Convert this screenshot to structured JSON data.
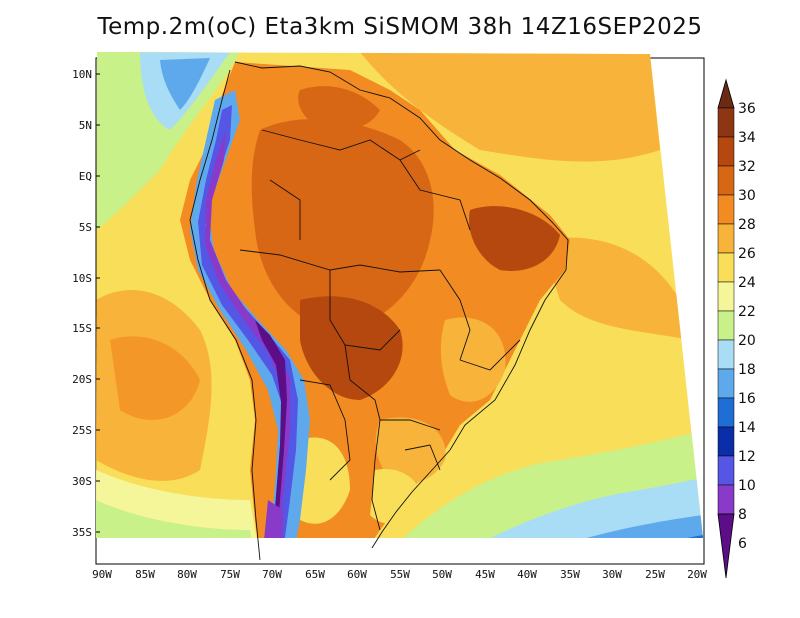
{
  "title": "Temp.2m(oC) Eta3km SiSMOM 38h 14Z16SEP2025",
  "map": {
    "lat_labels": [
      "10N",
      "5N",
      "EQ",
      "5S",
      "10S",
      "15S",
      "20S",
      "25S",
      "30S",
      "35S"
    ],
    "lon_labels": [
      "90W",
      "85W",
      "80W",
      "75W",
      "70W",
      "65W",
      "60W",
      "55W",
      "50W",
      "45W",
      "40W",
      "35W",
      "30W",
      "25W",
      "20W"
    ]
  },
  "colorbar": {
    "levels": [
      6,
      8,
      10,
      12,
      14,
      16,
      18,
      20,
      22,
      24,
      26,
      28,
      30,
      32,
      34,
      36
    ],
    "labels": [
      "36",
      "34",
      "32",
      "30",
      "28",
      "26",
      "24",
      "22",
      "20",
      "18",
      "16",
      "14",
      "12",
      "10",
      "8",
      "6"
    ],
    "colors_top_to_bottom": [
      "#6b2a12",
      "#8e3613",
      "#b4480f",
      "#d86715",
      "#f28b22",
      "#f7b33a",
      "#f9de5a",
      "#f5f59a",
      "#c9f18a",
      "#a9dcf5",
      "#5ea9ec",
      "#1e6ed6",
      "#0a2ea8",
      "#5555e6",
      "#8a3ac8",
      "#5b0e86"
    ]
  }
}
